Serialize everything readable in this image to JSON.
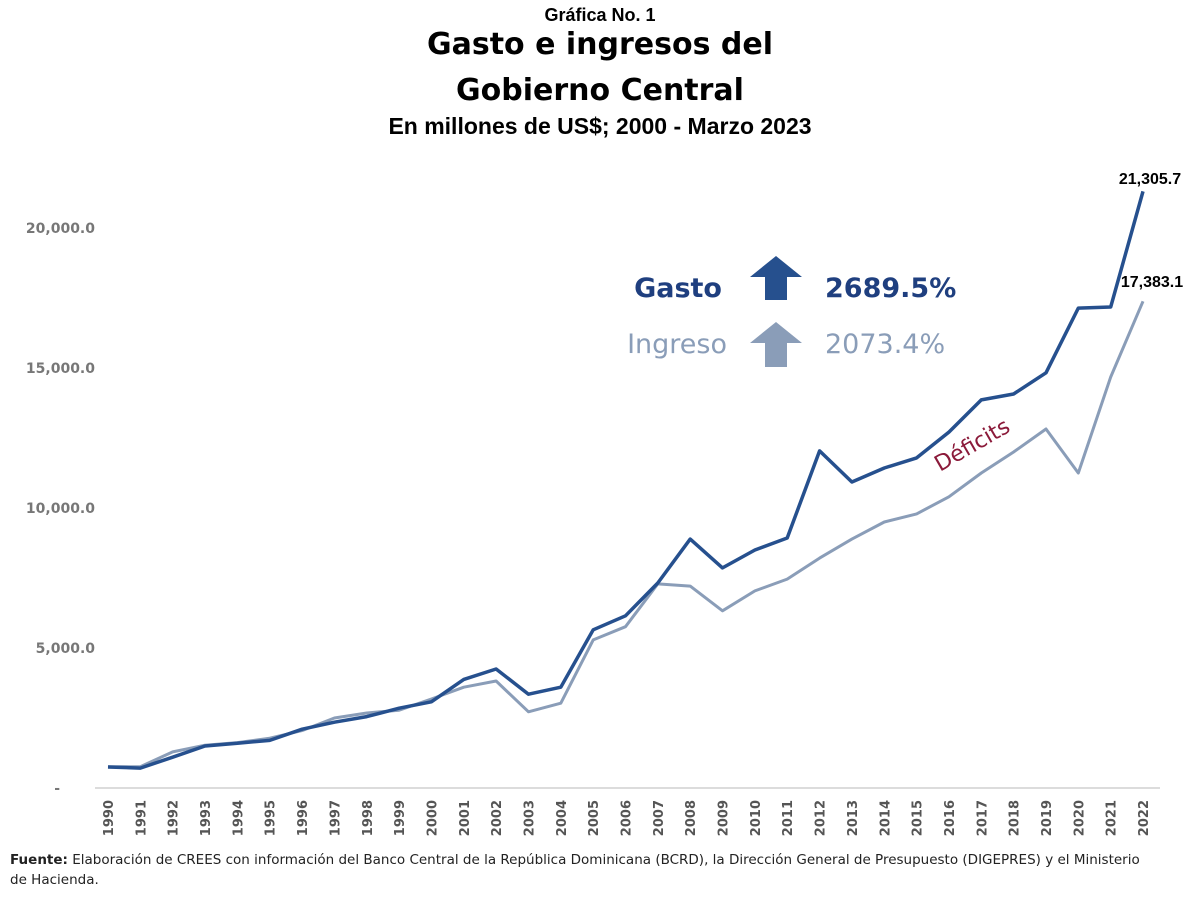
{
  "chart_data": {
    "type": "line",
    "label": "Gráfica No. 1",
    "title_line1": "Gasto e ingresos del",
    "title_line2": "Gobierno Central",
    "subtitle": "En millones de US$; 2000 - Marzo 2023",
    "x": [
      "1990",
      "1991",
      "1992",
      "1993",
      "1994",
      "1995",
      "1996",
      "1997",
      "1998",
      "1999",
      "2000",
      "2001",
      "2002",
      "2003",
      "2004",
      "2005",
      "2006",
      "2007",
      "2008",
      "2009",
      "2010",
      "2011",
      "2012",
      "2013",
      "2014",
      "2015",
      "2016",
      "2017",
      "2018",
      "2019",
      "2020",
      "2021",
      "2022"
    ],
    "y_ticks": [
      {
        "value": 0,
        "label": "-"
      },
      {
        "value": 5000,
        "label": "5,000.0"
      },
      {
        "value": 10000,
        "label": "10,000.0"
      },
      {
        "value": 15000,
        "label": "15,000.0"
      },
      {
        "value": 20000,
        "label": "20,000.0"
      }
    ],
    "ylim": [
      0,
      22500
    ],
    "grid": false,
    "series": [
      {
        "name": "Gasto",
        "color": "#26508e",
        "values": [
          750,
          710,
          1100,
          1500,
          1600,
          1700,
          2100,
          2350,
          2550,
          2850,
          3080,
          3880,
          4250,
          3350,
          3600,
          5650,
          6150,
          7320,
          8890,
          7860,
          8500,
          8930,
          12040,
          10930,
          11430,
          11790,
          12710,
          13860,
          14070,
          14830,
          17140,
          17180,
          21305.7
        ]
      },
      {
        "name": "Ingreso",
        "color": "#8a9db8",
        "values": [
          760,
          760,
          1290,
          1530,
          1620,
          1780,
          2050,
          2500,
          2680,
          2780,
          3180,
          3600,
          3820,
          2720,
          3030,
          5290,
          5760,
          7290,
          7210,
          6330,
          7040,
          7460,
          8210,
          8890,
          9500,
          9790,
          10400,
          11250,
          12000,
          12820,
          11250,
          14680,
          17383.1
        ]
      }
    ],
    "end_labels": {
      "gasto": "21,305.7",
      "ingreso": "17,383.1"
    },
    "legend": {
      "gasto_label": "Gasto",
      "gasto_growth": "2689.5%",
      "ingreso_label": "Ingreso",
      "ingreso_growth": "2073.4%"
    },
    "annotation": "Déficits",
    "annotation_color": "#8b1a3a"
  },
  "footer": {
    "source_label": "Fuente:",
    "source_text": " Elaboración de CREES con información del Banco Central de la República Dominicana (BCRD), la Dirección General de Presupuesto (DIGEPRES)  y el Ministerio de Hacienda."
  }
}
